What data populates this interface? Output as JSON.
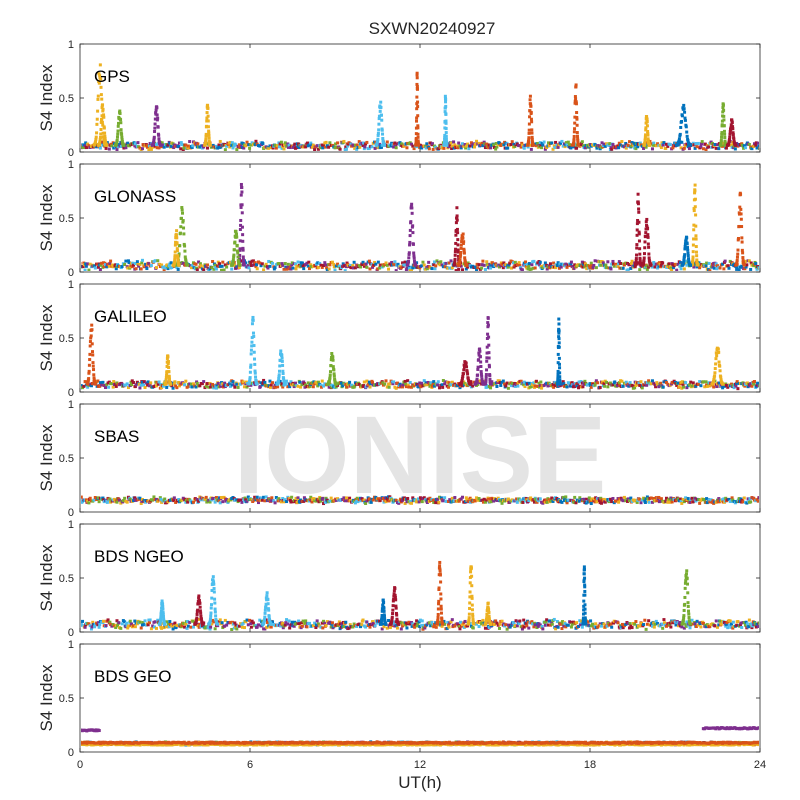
{
  "chart_data": {
    "type": "scatter",
    "title": "SXWN20240927",
    "watermark": "IONISE",
    "xlabel": "UT(h)",
    "x_ticks": [
      "0",
      "6",
      "12",
      "18",
      "24"
    ],
    "xlim": [
      0,
      24
    ],
    "ylabel": "S4 Index",
    "y_ticks": [
      "0",
      "0.5",
      "1"
    ],
    "ylim": [
      0,
      1
    ],
    "colors": [
      "#0072BD",
      "#D95319",
      "#EDB120",
      "#7E2F8E",
      "#77AC30",
      "#4DBEEE",
      "#A2142F"
    ],
    "panels": [
      {
        "label": "GPS",
        "baseline": 0.06,
        "noise": 0.025,
        "spikes": [
          {
            "t": 0.7,
            "peak": 0.85,
            "color": 2,
            "w": 0.4
          },
          {
            "t": 0.8,
            "peak": 0.45,
            "color": 2,
            "w": 0.3
          },
          {
            "t": 1.4,
            "peak": 0.4,
            "color": 4,
            "w": 0.3
          },
          {
            "t": 2.7,
            "peak": 0.45,
            "color": 3,
            "w": 0.3
          },
          {
            "t": 4.5,
            "peak": 0.45,
            "color": 2,
            "w": 0.2
          },
          {
            "t": 10.6,
            "peak": 0.48,
            "color": 5,
            "w": 0.3
          },
          {
            "t": 11.9,
            "peak": 0.75,
            "color": 1,
            "w": 0.1
          },
          {
            "t": 12.9,
            "peak": 0.55,
            "color": 5,
            "w": 0.1
          },
          {
            "t": 15.9,
            "peak": 0.55,
            "color": 1,
            "w": 0.2
          },
          {
            "t": 17.5,
            "peak": 0.65,
            "color": 1,
            "w": 0.2
          },
          {
            "t": 20.0,
            "peak": 0.35,
            "color": 2,
            "w": 0.2
          },
          {
            "t": 21.3,
            "peak": 0.45,
            "color": 0,
            "w": 0.5
          },
          {
            "t": 22.7,
            "peak": 0.48,
            "color": 4,
            "w": 0.2
          },
          {
            "t": 23.0,
            "peak": 0.3,
            "color": 6,
            "w": 0.3
          }
        ]
      },
      {
        "label": "GLONASS",
        "baseline": 0.06,
        "noise": 0.03,
        "spikes": [
          {
            "t": 3.6,
            "peak": 0.6,
            "color": 4,
            "w": 0.4
          },
          {
            "t": 3.4,
            "peak": 0.4,
            "color": 2,
            "w": 0.2
          },
          {
            "t": 5.7,
            "peak": 0.85,
            "color": 3,
            "w": 0.2
          },
          {
            "t": 5.5,
            "peak": 0.4,
            "color": 4,
            "w": 0.3
          },
          {
            "t": 11.7,
            "peak": 0.65,
            "color": 3,
            "w": 0.3
          },
          {
            "t": 13.3,
            "peak": 0.6,
            "color": 6,
            "w": 0.2
          },
          {
            "t": 13.5,
            "peak": 0.4,
            "color": 1,
            "w": 0.3
          },
          {
            "t": 19.7,
            "peak": 0.75,
            "color": 6,
            "w": 0.2
          },
          {
            "t": 20.0,
            "peak": 0.55,
            "color": 6,
            "w": 0.3
          },
          {
            "t": 21.7,
            "peak": 0.85,
            "color": 2,
            "w": 0.2
          },
          {
            "t": 21.4,
            "peak": 0.35,
            "color": 0,
            "w": 0.3
          },
          {
            "t": 23.3,
            "peak": 0.75,
            "color": 1,
            "w": 0.3
          }
        ]
      },
      {
        "label": "GALILEO",
        "baseline": 0.07,
        "noise": 0.025,
        "spikes": [
          {
            "t": 0.4,
            "peak": 0.65,
            "color": 1,
            "w": 0.3
          },
          {
            "t": 3.1,
            "peak": 0.35,
            "color": 2,
            "w": 0.2
          },
          {
            "t": 6.1,
            "peak": 0.7,
            "color": 5,
            "w": 0.3
          },
          {
            "t": 7.1,
            "peak": 0.4,
            "color": 5,
            "w": 0.3
          },
          {
            "t": 8.9,
            "peak": 0.38,
            "color": 4,
            "w": 0.3
          },
          {
            "t": 14.1,
            "peak": 0.4,
            "color": 3,
            "w": 0.3
          },
          {
            "t": 14.4,
            "peak": 0.72,
            "color": 3,
            "w": 0.2
          },
          {
            "t": 13.6,
            "peak": 0.3,
            "color": 6,
            "w": 0.4
          },
          {
            "t": 16.9,
            "peak": 0.7,
            "color": 0,
            "w": 0.1
          },
          {
            "t": 22.5,
            "peak": 0.45,
            "color": 2,
            "w": 0.4
          }
        ]
      },
      {
        "label": "SBAS",
        "baseline": 0.11,
        "noise": 0.02,
        "spikes": []
      },
      {
        "label": "BDS NGEO",
        "baseline": 0.07,
        "noise": 0.03,
        "spikes": [
          {
            "t": 2.9,
            "peak": 0.3,
            "color": 5,
            "w": 0.2
          },
          {
            "t": 4.2,
            "peak": 0.35,
            "color": 6,
            "w": 0.3
          },
          {
            "t": 4.7,
            "peak": 0.55,
            "color": 5,
            "w": 0.3
          },
          {
            "t": 6.6,
            "peak": 0.38,
            "color": 5,
            "w": 0.3
          },
          {
            "t": 10.7,
            "peak": 0.3,
            "color": 0,
            "w": 0.2
          },
          {
            "t": 11.1,
            "peak": 0.42,
            "color": 6,
            "w": 0.3
          },
          {
            "t": 12.7,
            "peak": 0.7,
            "color": 1,
            "w": 0.2
          },
          {
            "t": 13.8,
            "peak": 0.68,
            "color": 2,
            "w": 0.2
          },
          {
            "t": 14.4,
            "peak": 0.28,
            "color": 2,
            "w": 0.2
          },
          {
            "t": 17.8,
            "peak": 0.68,
            "color": 0,
            "w": 0.1
          },
          {
            "t": 21.4,
            "peak": 0.62,
            "color": 4,
            "w": 0.3
          }
        ]
      },
      {
        "label": "BDS GEO",
        "baseline": 0.08,
        "noise": 0.01,
        "spikes": [],
        "bands": [
          {
            "t0": 0,
            "t1": 24,
            "y": 0.07,
            "color": 2
          },
          {
            "t0": 0,
            "t1": 24,
            "y": 0.085,
            "color": 1
          },
          {
            "t0": 0,
            "t1": 0.7,
            "y": 0.2,
            "color": 3
          },
          {
            "t0": 22.0,
            "t1": 24,
            "y": 0.22,
            "color": 3
          }
        ]
      }
    ]
  }
}
